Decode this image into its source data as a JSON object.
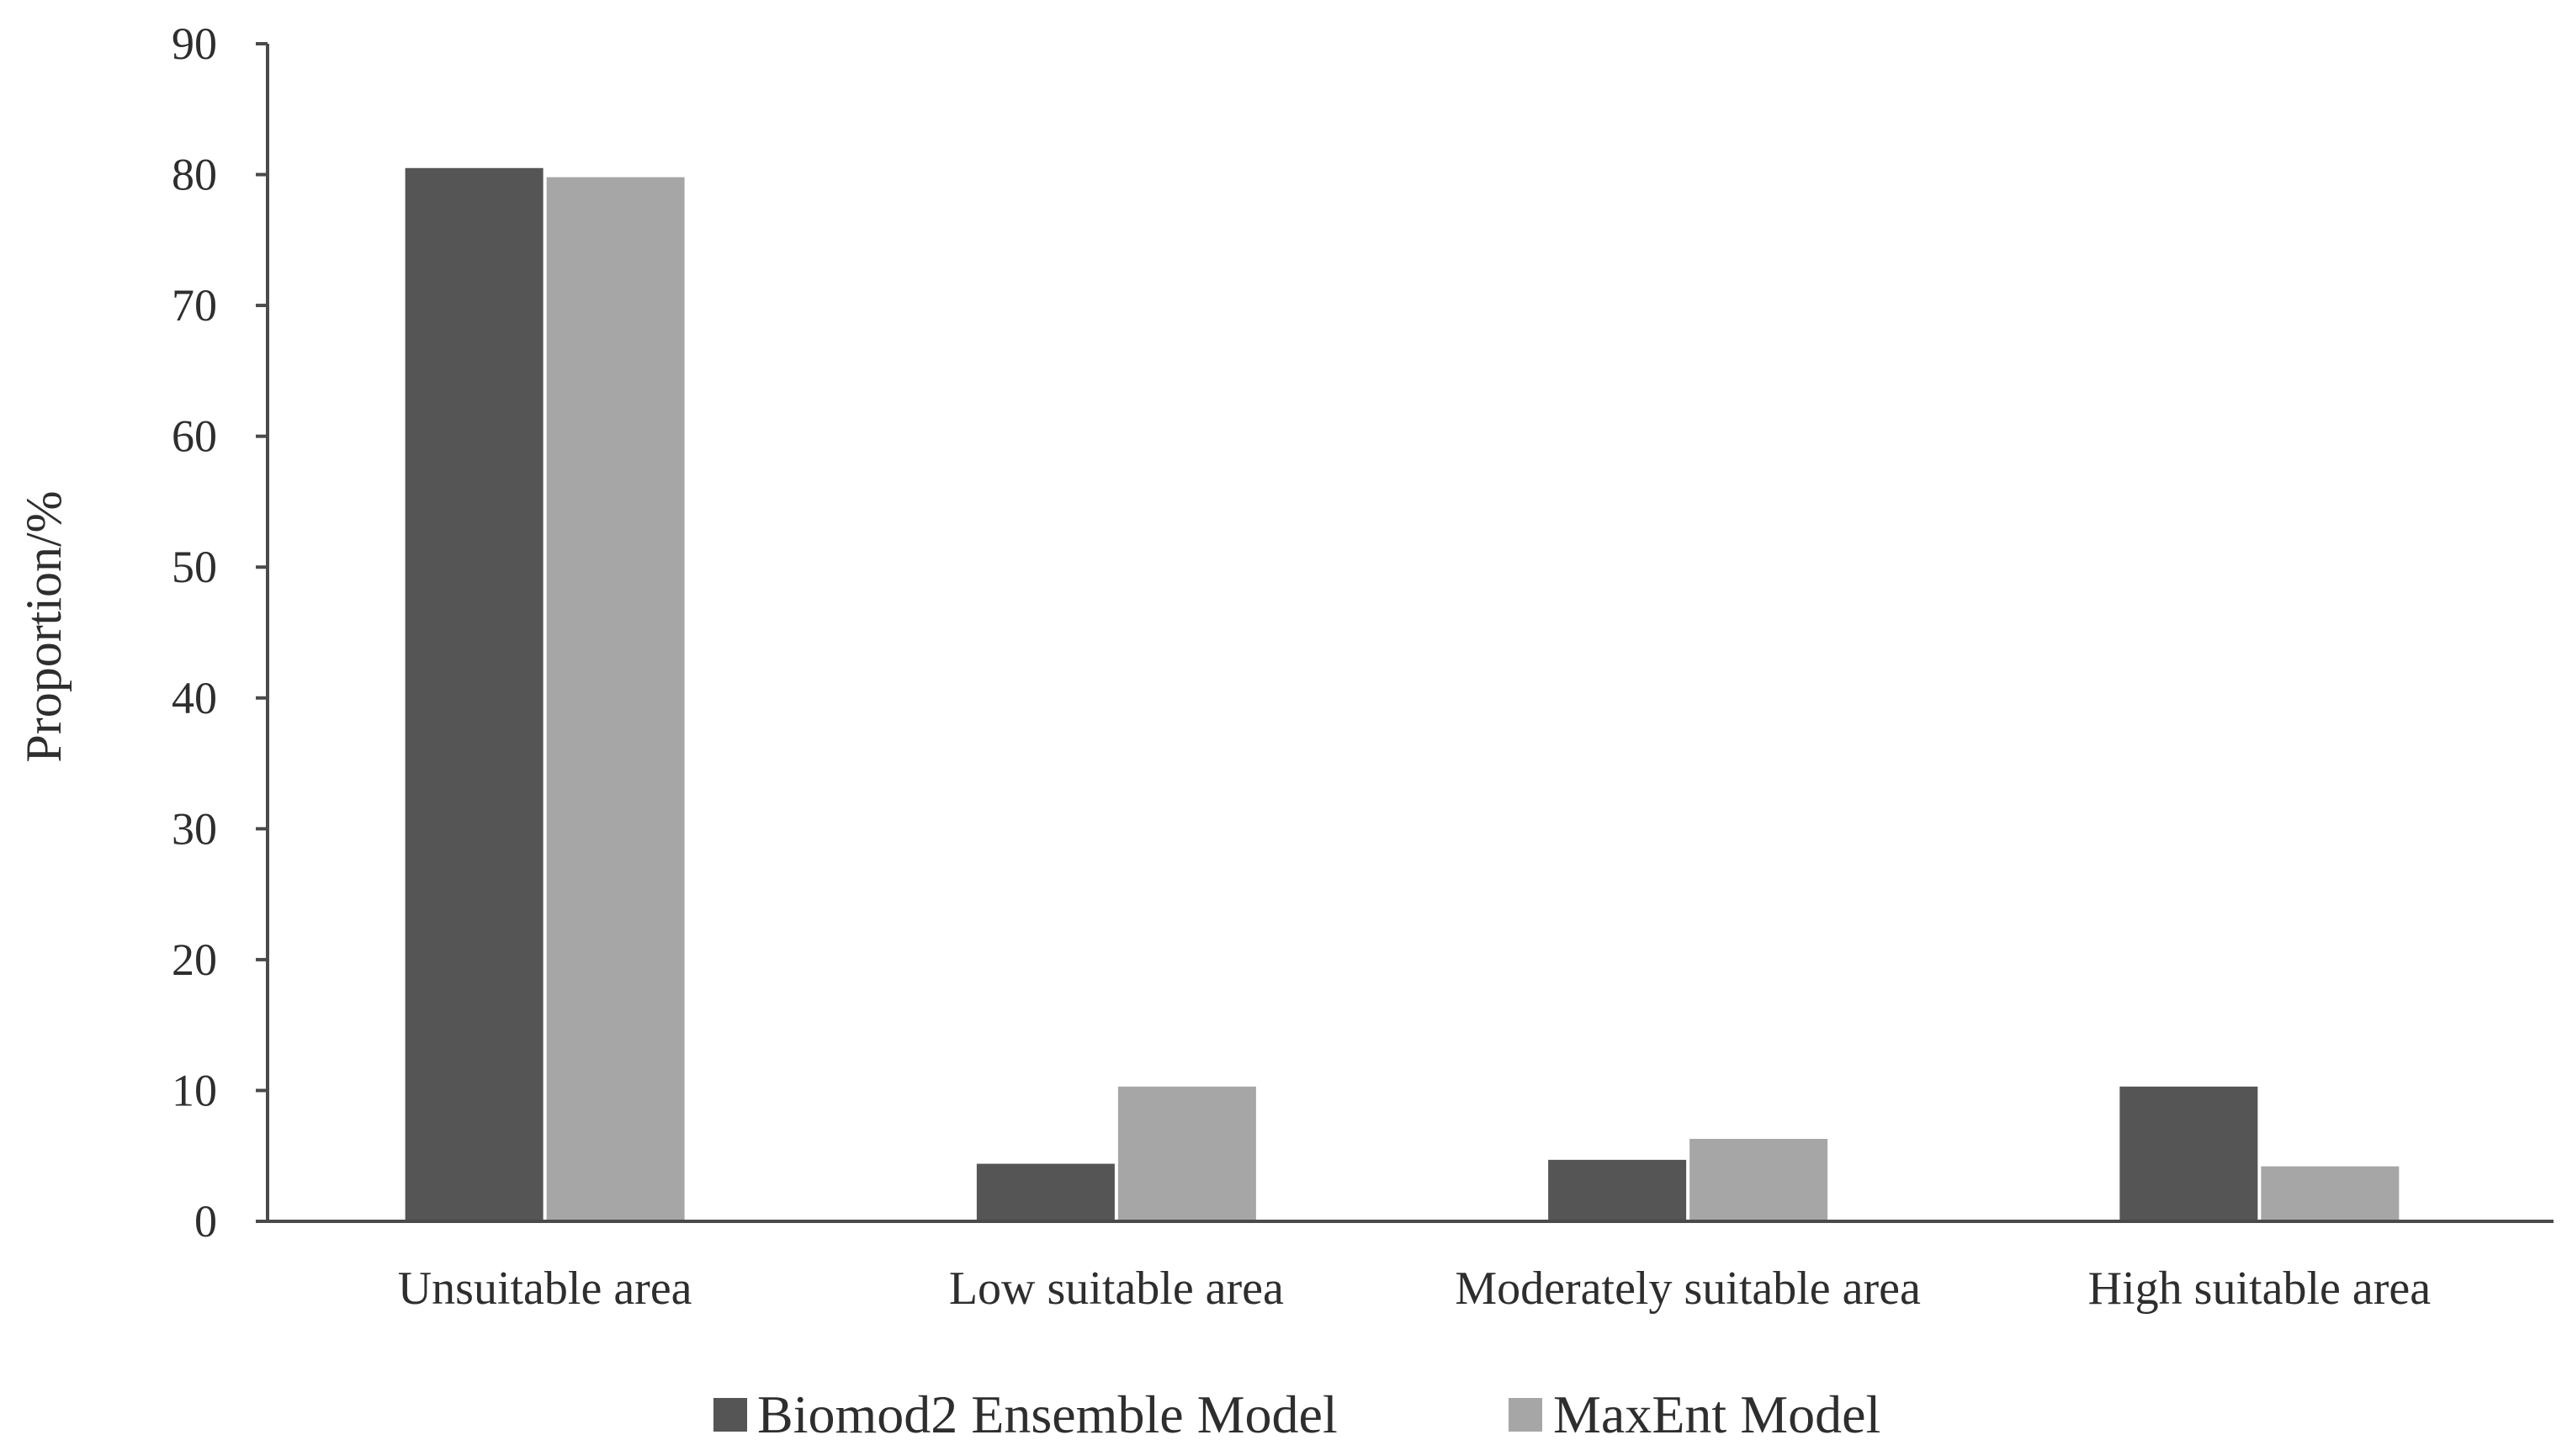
{
  "chart_data": {
    "type": "bar",
    "title": "",
    "xlabel": "",
    "ylabel": "Proportion/%",
    "ylim": [
      0,
      90
    ],
    "yticks": [
      0,
      10,
      20,
      30,
      40,
      50,
      60,
      70,
      80,
      90
    ],
    "grid": false,
    "legend_position": "bottom",
    "categories": [
      "Unsuitable area",
      "Low suitable area",
      "Moderately suitable area",
      "High suitable area"
    ],
    "series": [
      {
        "name": "Biomod2 Ensemble Model",
        "color": "#555555",
        "values": [
          80.5,
          4.4,
          4.7,
          10.3
        ]
      },
      {
        "name": "MaxEnt Model",
        "color": "#a6a6a6",
        "values": [
          79.8,
          10.3,
          6.3,
          4.2
        ]
      }
    ]
  }
}
